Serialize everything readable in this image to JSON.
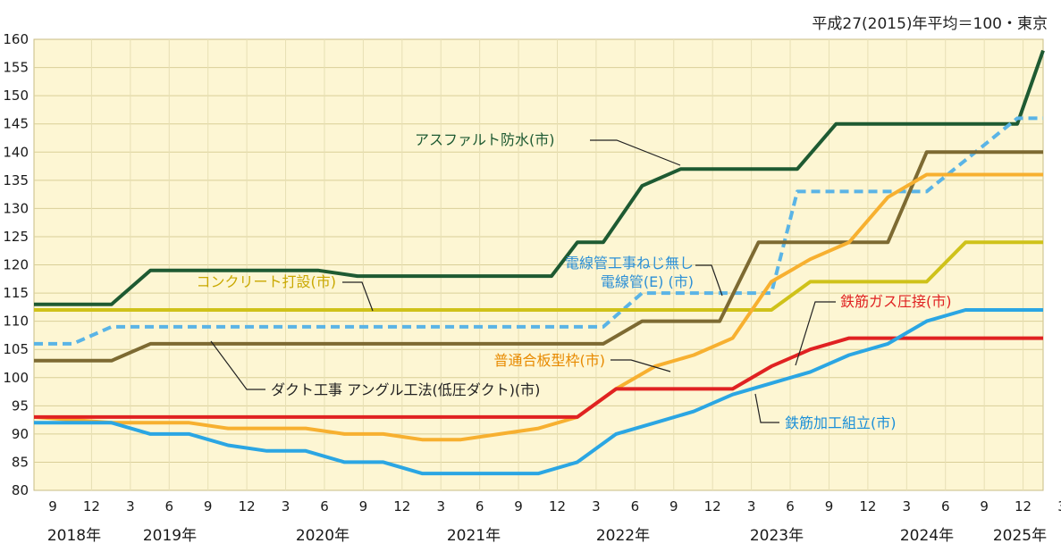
{
  "chart_data": {
    "type": "line",
    "note": "平成27(2015)年平均＝100・東京",
    "ylim": [
      80,
      160
    ],
    "yticks": [
      80,
      85,
      90,
      95,
      100,
      105,
      110,
      115,
      120,
      125,
      130,
      135,
      140,
      145,
      150,
      155,
      160
    ],
    "x_tick_labels": [
      "9",
      "12",
      "3",
      "6",
      "9",
      "12",
      "3",
      "6",
      "9",
      "12",
      "3",
      "6",
      "9",
      "12",
      "3",
      "6",
      "9",
      "12",
      "3",
      "6",
      "9",
      "12",
      "3",
      "6",
      "9",
      "12",
      "3"
    ],
    "year_labels": [
      "2018年",
      "2019年",
      "2020年",
      "2021年",
      "2022年",
      "2023年",
      "2024年",
      "2025年"
    ],
    "grid": true,
    "series": [
      {
        "name": "アスファルト防水(市)",
        "color": "#1e5a32",
        "style": "solid",
        "label_text": "アスファルト防水(市)",
        "label_color": "#1e5a32",
        "points": [
          [
            "2018-09",
            113
          ],
          [
            "2019-03",
            113
          ],
          [
            "2019-06",
            119
          ],
          [
            "2020-07",
            119
          ],
          [
            "2020-10",
            118
          ],
          [
            "2022-01",
            118
          ],
          [
            "2022-03",
            124
          ],
          [
            "2022-05",
            124
          ],
          [
            "2022-08",
            134
          ],
          [
            "2022-11",
            137
          ],
          [
            "2023-08",
            137
          ],
          [
            "2023-11",
            145
          ],
          [
            "2025-01",
            145
          ],
          [
            "2025-03",
            158
          ]
        ]
      },
      {
        "name": "電線管工事ねじ無し電線管(E)(市)",
        "color": "#5ab4e6",
        "style": "dashed",
        "label_lines": [
          "電線管工事ねじ無し",
          "電線管(E) (市)"
        ],
        "label_color": "#2b8fd6",
        "points": [
          [
            "2018-09",
            106
          ],
          [
            "2018-12",
            106
          ],
          [
            "2019-03",
            109
          ],
          [
            "2022-05",
            109
          ],
          [
            "2022-08",
            115
          ],
          [
            "2023-06",
            115
          ],
          [
            "2023-08",
            133
          ],
          [
            "2024-06",
            133
          ],
          [
            "2025-01",
            146
          ],
          [
            "2025-03",
            146
          ]
        ]
      },
      {
        "name": "コンクリート打設(市)",
        "color": "#cfc21a",
        "style": "solid",
        "label_text": "コンクリート打設(市)",
        "label_color": "#c9a800",
        "points": [
          [
            "2018-09",
            112
          ],
          [
            "2023-06",
            112
          ],
          [
            "2023-09",
            117
          ],
          [
            "2024-06",
            117
          ],
          [
            "2024-09",
            124
          ],
          [
            "2025-03",
            124
          ]
        ]
      },
      {
        "name": "ダクト工事 アングル工法(低圧ダクト)(市)",
        "color": "#7d6a32",
        "style": "solid",
        "label_text": "ダクト工事 アングル工法(低圧ダクト)(市)",
        "label_color": "#222222",
        "points": [
          [
            "2018-09",
            103
          ],
          [
            "2019-03",
            103
          ],
          [
            "2019-06",
            106
          ],
          [
            "2022-05",
            106
          ],
          [
            "2022-08",
            110
          ],
          [
            "2023-02",
            110
          ],
          [
            "2023-05",
            124
          ],
          [
            "2024-03",
            124
          ],
          [
            "2024-06",
            140
          ],
          [
            "2025-03",
            140
          ]
        ]
      },
      {
        "name": "普通合板型枠(市)",
        "color": "#f7b030",
        "style": "solid",
        "label_text": "普通合板型枠(市)",
        "label_color": "#e88a00",
        "points": [
          [
            "2018-09",
            93
          ],
          [
            "2019-03",
            92
          ],
          [
            "2019-09",
            92
          ],
          [
            "2019-12",
            91
          ],
          [
            "2020-06",
            91
          ],
          [
            "2020-09",
            90
          ],
          [
            "2020-12",
            90
          ],
          [
            "2021-03",
            89
          ],
          [
            "2021-06",
            89
          ],
          [
            "2021-09",
            90
          ],
          [
            "2021-12",
            91
          ],
          [
            "2022-03",
            93
          ],
          [
            "2022-06",
            98
          ],
          [
            "2022-09",
            102
          ],
          [
            "2022-12",
            104
          ],
          [
            "2023-03",
            107
          ],
          [
            "2023-06",
            117
          ],
          [
            "2023-09",
            121
          ],
          [
            "2023-12",
            124
          ],
          [
            "2024-03",
            132
          ],
          [
            "2024-06",
            136
          ],
          [
            "2025-03",
            136
          ]
        ]
      },
      {
        "name": "鉄筋ガス圧接(市)",
        "color": "#e02222",
        "style": "solid",
        "label_text": "鉄筋ガス圧接(市)",
        "label_color": "#e02222",
        "points": [
          [
            "2018-09",
            93
          ],
          [
            "2022-03",
            93
          ],
          [
            "2022-06",
            98
          ],
          [
            "2023-03",
            98
          ],
          [
            "2023-06",
            102
          ],
          [
            "2023-09",
            105
          ],
          [
            "2023-12",
            107
          ],
          [
            "2025-03",
            107
          ]
        ]
      },
      {
        "name": "鉄筋加工組立(市)",
        "color": "#2ba6e3",
        "style": "solid",
        "label_text": "鉄筋加工組立(市)",
        "label_color": "#1a8fd8",
        "points": [
          [
            "2018-09",
            92
          ],
          [
            "2019-03",
            92
          ],
          [
            "2019-06",
            90
          ],
          [
            "2019-09",
            90
          ],
          [
            "2019-12",
            88
          ],
          [
            "2020-03",
            87
          ],
          [
            "2020-06",
            87
          ],
          [
            "2020-09",
            85
          ],
          [
            "2020-12",
            85
          ],
          [
            "2021-03",
            83
          ],
          [
            "2021-12",
            83
          ],
          [
            "2022-03",
            85
          ],
          [
            "2022-06",
            90
          ],
          [
            "2022-09",
            92
          ],
          [
            "2022-12",
            94
          ],
          [
            "2023-03",
            97
          ],
          [
            "2023-06",
            99
          ],
          [
            "2023-09",
            101
          ],
          [
            "2023-12",
            104
          ],
          [
            "2024-03",
            106
          ],
          [
            "2024-06",
            110
          ],
          [
            "2024-09",
            112
          ],
          [
            "2025-03",
            112
          ]
        ]
      }
    ]
  }
}
